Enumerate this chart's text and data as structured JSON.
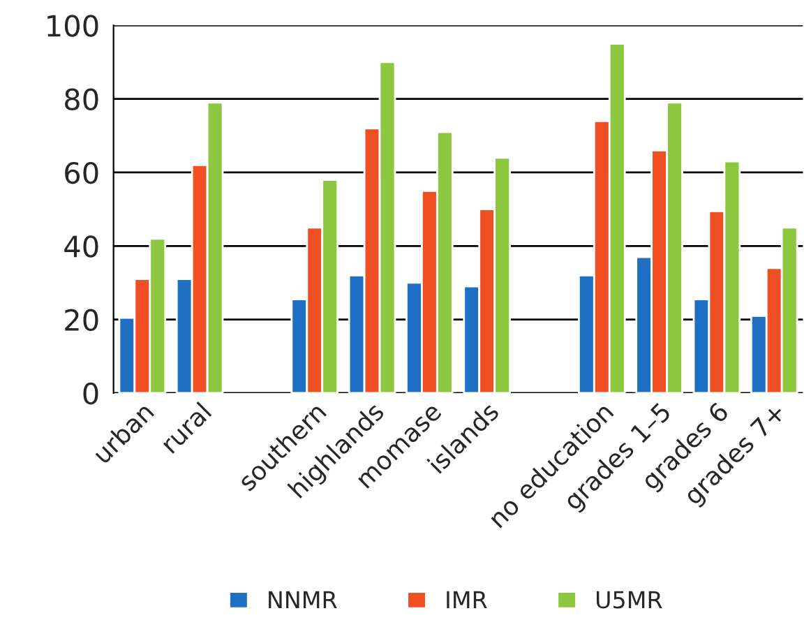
{
  "chart_data": {
    "type": "bar",
    "categories": [
      "urban",
      "rural",
      null,
      "southern",
      "highlands",
      "momase",
      "islands",
      null,
      "no education",
      "grades 1–5",
      "grades 6",
      "grades 7+"
    ],
    "series": [
      {
        "name": "NNMR",
        "color": "#1f6fc5",
        "values": [
          20.5,
          31,
          null,
          25.5,
          32,
          30,
          29,
          null,
          32,
          37,
          25.5,
          21
        ]
      },
      {
        "name": "IMR",
        "color": "#f04e23",
        "values": [
          31,
          62,
          null,
          45,
          72,
          55,
          50,
          null,
          74,
          66,
          49.5,
          34
        ]
      },
      {
        "name": "U5MR",
        "color": "#8dc63f",
        "values": [
          42,
          79,
          null,
          58,
          90,
          71,
          64,
          null,
          95,
          79,
          63,
          45
        ]
      }
    ],
    "ylim": [
      0,
      100
    ],
    "yticks": [
      0,
      20,
      40,
      60,
      80,
      100
    ],
    "grid": "y",
    "legend": "bottom"
  }
}
